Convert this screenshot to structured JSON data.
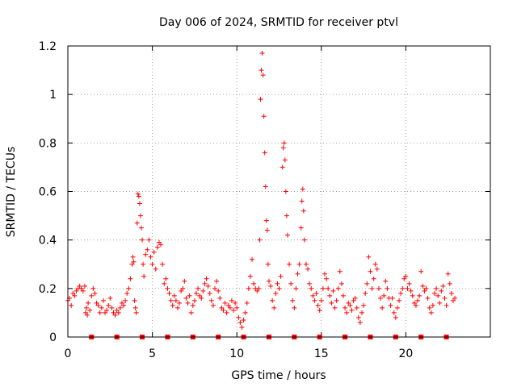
{
  "chart_data": {
    "type": "scatter",
    "title": "Day 006 of 2024, SRMTID for receiver ptvl",
    "xlabel": "GPS time / hours",
    "ylabel": "SRMTID / TECUs",
    "xlim": [
      0,
      25
    ],
    "ylim": [
      0,
      1.2
    ],
    "xticks": [
      0,
      5,
      10,
      15,
      20
    ],
    "yticks": [
      0,
      0.2,
      0.4,
      0.6,
      0.8,
      1,
      1.2
    ],
    "xtick_labels": [
      "0",
      "5",
      "10",
      "15",
      "20"
    ],
    "ytick_labels": [
      "0",
      "0.2",
      "0.4",
      "0.6",
      "0.8",
      "1",
      "1.2"
    ],
    "grid": true,
    "legend": "none",
    "marker": "+",
    "series": [
      {
        "name": "SRMTID",
        "color": "#ff0000",
        "points": [
          [
            0.0,
            0.15
          ],
          [
            0.1,
            0.16
          ],
          [
            0.2,
            0.13
          ],
          [
            0.3,
            0.18
          ],
          [
            0.4,
            0.17
          ],
          [
            0.5,
            0.19
          ],
          [
            0.6,
            0.2
          ],
          [
            0.7,
            0.21
          ],
          [
            0.8,
            0.2
          ],
          [
            0.9,
            0.19
          ],
          [
            1.0,
            0.21
          ],
          [
            1.05,
            0.1
          ],
          [
            1.1,
            0.12
          ],
          [
            1.15,
            0.09
          ],
          [
            1.2,
            0.14
          ],
          [
            1.3,
            0.11
          ],
          [
            1.4,
            0.17
          ],
          [
            1.5,
            0.2
          ],
          [
            1.6,
            0.18
          ],
          [
            1.7,
            0.14
          ],
          [
            1.8,
            0.13
          ],
          [
            1.9,
            0.1
          ],
          [
            2.0,
            0.12
          ],
          [
            2.1,
            0.15
          ],
          [
            2.2,
            0.1
          ],
          [
            2.3,
            0.11
          ],
          [
            2.4,
            0.13
          ],
          [
            2.5,
            0.16
          ],
          [
            2.6,
            0.12
          ],
          [
            2.7,
            0.1
          ],
          [
            2.8,
            0.09
          ],
          [
            2.9,
            0.11
          ],
          [
            3.0,
            0.1
          ],
          [
            3.1,
            0.12
          ],
          [
            3.2,
            0.14
          ],
          [
            3.3,
            0.13
          ],
          [
            3.4,
            0.15
          ],
          [
            3.5,
            0.18
          ],
          [
            3.6,
            0.2
          ],
          [
            3.7,
            0.24
          ],
          [
            3.8,
            0.3
          ],
          [
            3.85,
            0.33
          ],
          [
            3.9,
            0.31
          ],
          [
            3.95,
            0.15
          ],
          [
            4.0,
            0.12
          ],
          [
            4.05,
            0.1
          ],
          [
            4.1,
            0.47
          ],
          [
            4.15,
            0.59
          ],
          [
            4.2,
            0.58
          ],
          [
            4.25,
            0.55
          ],
          [
            4.3,
            0.5
          ],
          [
            4.35,
            0.45
          ],
          [
            4.4,
            0.4
          ],
          [
            4.45,
            0.3
          ],
          [
            4.5,
            0.25
          ],
          [
            4.6,
            0.34
          ],
          [
            4.7,
            0.36
          ],
          [
            4.8,
            0.4
          ],
          [
            4.9,
            0.33
          ],
          [
            5.0,
            0.3
          ],
          [
            5.1,
            0.35
          ],
          [
            5.2,
            0.28
          ],
          [
            5.3,
            0.37
          ],
          [
            5.4,
            0.39
          ],
          [
            5.5,
            0.38
          ],
          [
            5.6,
            0.3
          ],
          [
            5.7,
            0.22
          ],
          [
            5.8,
            0.24
          ],
          [
            5.9,
            0.2
          ],
          [
            6.0,
            0.18
          ],
          [
            6.1,
            0.15
          ],
          [
            6.2,
            0.13
          ],
          [
            6.3,
            0.17
          ],
          [
            6.4,
            0.15
          ],
          [
            6.5,
            0.12
          ],
          [
            6.6,
            0.14
          ],
          [
            6.7,
            0.19
          ],
          [
            6.8,
            0.2
          ],
          [
            6.9,
            0.23
          ],
          [
            7.0,
            0.16
          ],
          [
            7.1,
            0.14
          ],
          [
            7.2,
            0.17
          ],
          [
            7.3,
            0.1
          ],
          [
            7.4,
            0.13
          ],
          [
            7.5,
            0.15
          ],
          [
            7.6,
            0.18
          ],
          [
            7.7,
            0.2
          ],
          [
            7.8,
            0.17
          ],
          [
            7.9,
            0.16
          ],
          [
            8.0,
            0.19
          ],
          [
            8.1,
            0.22
          ],
          [
            8.2,
            0.24
          ],
          [
            8.3,
            0.21
          ],
          [
            8.4,
            0.18
          ],
          [
            8.5,
            0.15
          ],
          [
            8.6,
            0.13
          ],
          [
            8.7,
            0.2
          ],
          [
            8.8,
            0.23
          ],
          [
            8.9,
            0.19
          ],
          [
            9.0,
            0.16
          ],
          [
            9.1,
            0.12
          ],
          [
            9.2,
            0.11
          ],
          [
            9.3,
            0.14
          ],
          [
            9.4,
            0.1
          ],
          [
            9.5,
            0.13
          ],
          [
            9.6,
            0.12
          ],
          [
            9.7,
            0.15
          ],
          [
            9.8,
            0.11
          ],
          [
            9.9,
            0.14
          ],
          [
            10.0,
            0.12
          ],
          [
            10.1,
            0.08
          ],
          [
            10.2,
            0.06
          ],
          [
            10.3,
            0.04
          ],
          [
            10.4,
            0.07
          ],
          [
            10.5,
            0.1
          ],
          [
            10.6,
            0.14
          ],
          [
            10.7,
            0.2
          ],
          [
            10.8,
            0.25
          ],
          [
            10.9,
            0.32
          ],
          [
            11.0,
            0.22
          ],
          [
            11.1,
            0.2
          ],
          [
            11.2,
            0.19
          ],
          [
            11.3,
            0.2
          ],
          [
            11.35,
            0.4
          ],
          [
            11.4,
            0.98
          ],
          [
            11.45,
            1.1
          ],
          [
            11.5,
            1.17
          ],
          [
            11.55,
            1.08
          ],
          [
            11.6,
            0.91
          ],
          [
            11.65,
            0.76
          ],
          [
            11.7,
            0.62
          ],
          [
            11.75,
            0.48
          ],
          [
            11.8,
            0.44
          ],
          [
            11.85,
            0.3
          ],
          [
            11.9,
            0.23
          ],
          [
            12.0,
            0.21
          ],
          [
            12.1,
            0.15
          ],
          [
            12.2,
            0.12
          ],
          [
            12.3,
            0.18
          ],
          [
            12.4,
            0.22
          ],
          [
            12.5,
            0.2
          ],
          [
            12.6,
            0.25
          ],
          [
            12.7,
            0.7
          ],
          [
            12.75,
            0.78
          ],
          [
            12.8,
            0.8
          ],
          [
            12.85,
            0.73
          ],
          [
            12.9,
            0.6
          ],
          [
            12.95,
            0.5
          ],
          [
            13.0,
            0.42
          ],
          [
            13.1,
            0.3
          ],
          [
            13.2,
            0.22
          ],
          [
            13.3,
            0.15
          ],
          [
            13.4,
            0.12
          ],
          [
            13.5,
            0.2
          ],
          [
            13.6,
            0.26
          ],
          [
            13.7,
            0.3
          ],
          [
            13.8,
            0.45
          ],
          [
            13.85,
            0.56
          ],
          [
            13.9,
            0.61
          ],
          [
            13.95,
            0.52
          ],
          [
            14.0,
            0.4
          ],
          [
            14.1,
            0.3
          ],
          [
            14.2,
            0.28
          ],
          [
            14.3,
            0.22
          ],
          [
            14.4,
            0.2
          ],
          [
            14.5,
            0.17
          ],
          [
            14.6,
            0.15
          ],
          [
            14.7,
            0.18
          ],
          [
            14.8,
            0.13
          ],
          [
            14.9,
            0.11
          ],
          [
            15.0,
            0.15
          ],
          [
            15.1,
            0.2
          ],
          [
            15.2,
            0.26
          ],
          [
            15.3,
            0.24
          ],
          [
            15.4,
            0.2
          ],
          [
            15.5,
            0.17
          ],
          [
            15.6,
            0.14
          ],
          [
            15.7,
            0.19
          ],
          [
            15.8,
            0.12
          ],
          [
            15.9,
            0.15
          ],
          [
            16.0,
            0.2
          ],
          [
            16.1,
            0.27
          ],
          [
            16.2,
            0.22
          ],
          [
            16.3,
            0.17
          ],
          [
            16.4,
            0.12
          ],
          [
            16.5,
            0.1
          ],
          [
            16.6,
            0.14
          ],
          [
            16.7,
            0.13
          ],
          [
            16.8,
            0.11
          ],
          [
            16.9,
            0.15
          ],
          [
            17.0,
            0.16
          ],
          [
            17.1,
            0.12
          ],
          [
            17.2,
            0.08
          ],
          [
            17.3,
            0.06
          ],
          [
            17.4,
            0.1
          ],
          [
            17.5,
            0.13
          ],
          [
            17.6,
            0.18
          ],
          [
            17.7,
            0.22
          ],
          [
            17.8,
            0.33
          ],
          [
            17.9,
            0.27
          ],
          [
            18.0,
            0.2
          ],
          [
            18.1,
            0.24
          ],
          [
            18.2,
            0.3
          ],
          [
            18.3,
            0.28
          ],
          [
            18.4,
            0.2
          ],
          [
            18.5,
            0.16
          ],
          [
            18.6,
            0.12
          ],
          [
            18.7,
            0.17
          ],
          [
            18.8,
            0.23
          ],
          [
            18.9,
            0.2
          ],
          [
            19.0,
            0.16
          ],
          [
            19.1,
            0.13
          ],
          [
            19.2,
            0.16
          ],
          [
            19.3,
            0.1
          ],
          [
            19.4,
            0.08
          ],
          [
            19.5,
            0.12
          ],
          [
            19.6,
            0.15
          ],
          [
            19.7,
            0.18
          ],
          [
            19.8,
            0.2
          ],
          [
            19.9,
            0.24
          ],
          [
            20.0,
            0.25
          ],
          [
            20.1,
            0.2
          ],
          [
            20.2,
            0.22
          ],
          [
            20.3,
            0.19
          ],
          [
            20.4,
            0.17
          ],
          [
            20.5,
            0.14
          ],
          [
            20.6,
            0.13
          ],
          [
            20.7,
            0.15
          ],
          [
            20.8,
            0.17
          ],
          [
            20.9,
            0.27
          ],
          [
            21.0,
            0.21
          ],
          [
            21.1,
            0.19
          ],
          [
            21.2,
            0.2
          ],
          [
            21.3,
            0.16
          ],
          [
            21.4,
            0.12
          ],
          [
            21.5,
            0.1
          ],
          [
            21.6,
            0.13
          ],
          [
            21.7,
            0.18
          ],
          [
            21.8,
            0.2
          ],
          [
            21.9,
            0.17
          ],
          [
            22.0,
            0.14
          ],
          [
            22.1,
            0.19
          ],
          [
            22.2,
            0.21
          ],
          [
            22.3,
            0.16
          ],
          [
            22.4,
            0.13
          ],
          [
            22.5,
            0.26
          ],
          [
            22.6,
            0.22
          ],
          [
            22.7,
            0.18
          ],
          [
            22.8,
            0.15
          ],
          [
            22.9,
            0.16
          ]
        ]
      }
    ],
    "baseline_markers": {
      "name": "data-gap markers",
      "color": "#ff0000",
      "y": 0,
      "x": [
        1.4,
        2.9,
        4.4,
        5.9,
        7.4,
        8.9,
        10.4,
        11.9,
        13.4,
        14.9,
        16.4,
        17.9,
        19.4,
        20.9,
        22.4
      ]
    }
  }
}
